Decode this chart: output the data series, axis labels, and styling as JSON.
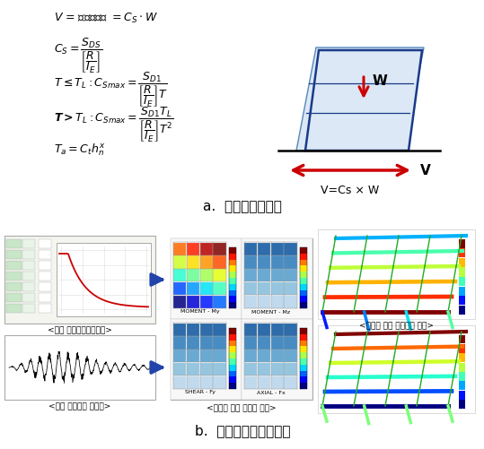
{
  "title_a": "a.  등가정적해석법",
  "title_b": "b.  응답스펙트럼해석법",
  "label_spectrum": "<입력 설계응답스펙트럼>",
  "label_seismic": "<입력 시간이력 지진파>",
  "label_member": "<지진에 의한 부재력 검토>",
  "label_drift": "<지진에 의한 층간변위 검토>",
  "label_W": "W",
  "label_V": "V",
  "label_VCsW": "V=Cs × W",
  "bg_color": "#ffffff",
  "text_color": "#000000",
  "red_color": "#cc0000",
  "blue_color": "#1a3a8a"
}
